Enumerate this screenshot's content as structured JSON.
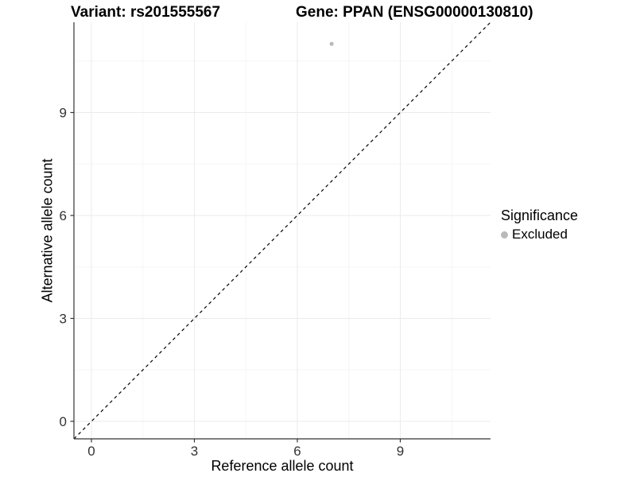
{
  "chart_data": {
    "type": "scatter",
    "title_left": "Variant: rs201555567",
    "title_right": "Gene: PPAN (ENSG00000130810)",
    "xlabel": "Reference allele count",
    "ylabel": "Alternative allele count",
    "xlim": [
      -0.51,
      11.63
    ],
    "ylim": [
      -0.51,
      11.63
    ],
    "x_ticks": [
      0,
      3,
      6,
      9
    ],
    "y_ticks": [
      0,
      3,
      6,
      9
    ],
    "x_minor_ticks": [
      1.5,
      4.5,
      7.5,
      10.5
    ],
    "y_minor_ticks": [
      1.5,
      4.5,
      7.5,
      10.5
    ],
    "grid": "major+minor",
    "legend_position": "right",
    "series": [
      {
        "name": "Excluded",
        "color": "#b9b9b9",
        "point_radius": 2.5,
        "points": [
          {
            "x": 7,
            "y": 11
          }
        ]
      }
    ],
    "reference_line": {
      "type": "identity y=x",
      "linetype": "dashed",
      "color": "#000000",
      "from": [
        -0.51,
        -0.51
      ],
      "to": [
        11.63,
        11.63
      ]
    },
    "legend": {
      "title": "Significance",
      "items": [
        {
          "label": "Excluded",
          "color": "#b9b9b9"
        }
      ]
    },
    "style": {
      "background": "#ffffff",
      "grid_major": "#ebebeb",
      "grid_minor": "#f5f5f5",
      "axis_color": "#333333",
      "tick_label_color": "#333333"
    }
  }
}
